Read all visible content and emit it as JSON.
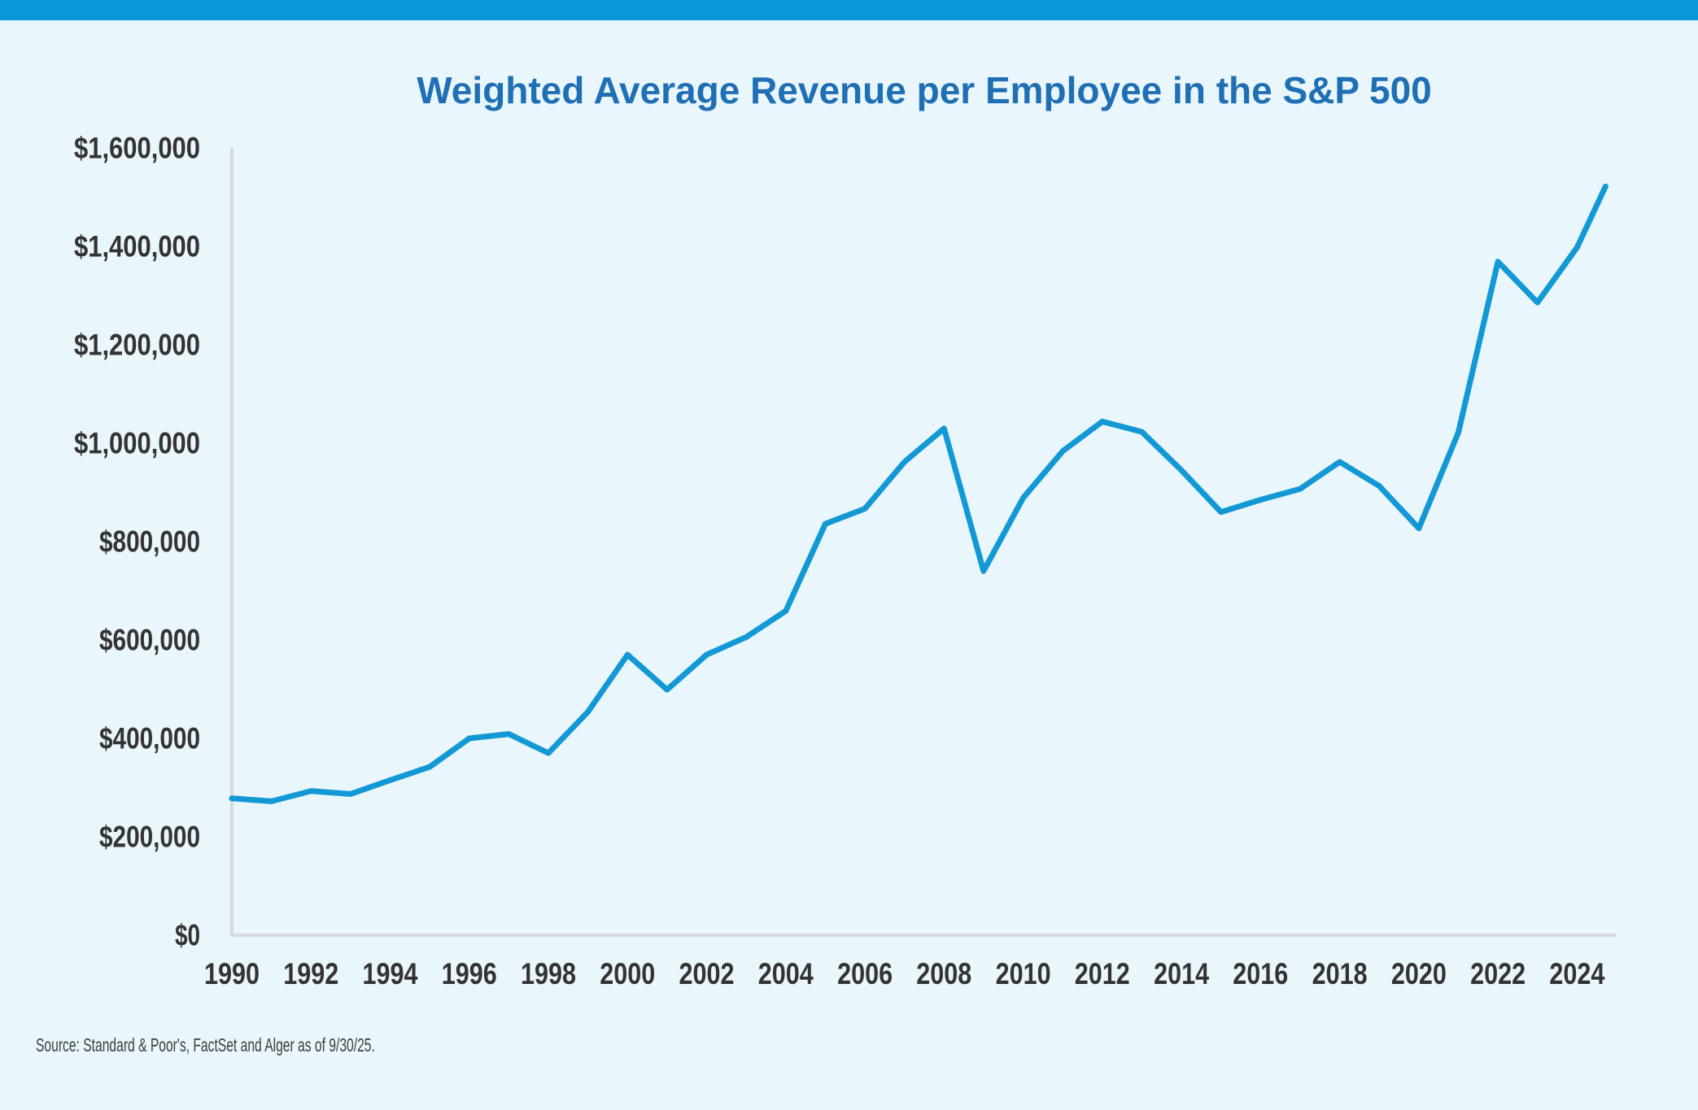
{
  "page": {
    "background_color": "#E9F6FB",
    "accent_bar_color": "#0999DB"
  },
  "header": {
    "title": "Weighted Average Revenue per Employee in the S&P 500",
    "title_color": "#1F6FB5"
  },
  "footer": {
    "source_note": "Source: Standard & Poor's, FactSet and Alger as of 9/30/25."
  },
  "chart_data": {
    "type": "line",
    "title": "Weighted Average Revenue per Employee in the S&P 500",
    "x": [
      1990,
      1991,
      1992,
      1993,
      1994,
      1995,
      1996,
      1997,
      1998,
      1999,
      2000,
      2001,
      2002,
      2003,
      2004,
      2005,
      2006,
      2007,
      2008,
      2009,
      2010,
      2011,
      2012,
      2013,
      2014,
      2015,
      2016,
      2017,
      2018,
      2019,
      2020,
      2021,
      2022,
      2023,
      2024,
      2025
    ],
    "series": [
      {
        "name": "Weighted average revenue per employee ($)",
        "color": "#1398D6",
        "values": [
          278000,
          272000,
          293000,
          287000,
          315000,
          342000,
          400000,
          409000,
          370000,
          454000,
          570000,
          499000,
          570000,
          606000,
          659000,
          836000,
          867000,
          962000,
          1030000,
          740000,
          889000,
          984000,
          1044000,
          1023000,
          945000,
          860000,
          885000,
          907000,
          962000,
          913000,
          827000,
          1022000,
          1369000,
          1286000,
          1398000,
          1522000
        ]
      }
    ],
    "x_tick_labels": [
      "1990",
      "1992",
      "1994",
      "1996",
      "1998",
      "2000",
      "2002",
      "2004",
      "2006",
      "2008",
      "2010",
      "2012",
      "2014",
      "2016",
      "2018",
      "2020",
      "2022",
      "2024"
    ],
    "y_tick_values": [
      0,
      200000,
      400000,
      600000,
      800000,
      1000000,
      1200000,
      1400000,
      1600000
    ],
    "y_tick_labels": [
      "$0",
      "$200,000",
      "$400,000",
      "$600,000",
      "$800,000",
      "$1,000,000",
      "$1,200,000",
      "$1,400,000",
      "$1,600,000"
    ],
    "xlim": [
      1990,
      2025
    ],
    "ylim": [
      0,
      1600000
    ],
    "grid": false,
    "legend": false,
    "axis_color": "#D6DADD",
    "tick_label_color": "#333333",
    "line_width": 7,
    "plot_end_x": 2024.72
  }
}
